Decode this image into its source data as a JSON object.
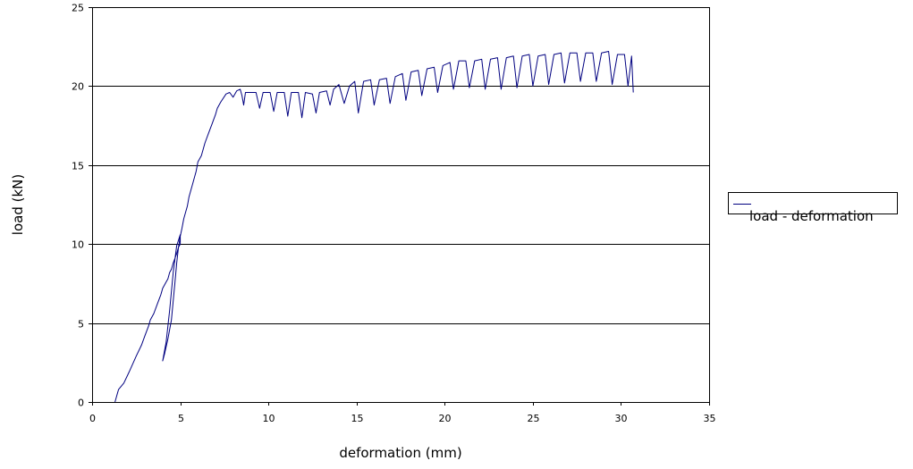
{
  "chart_data": {
    "type": "line",
    "title": "",
    "xlabel": "deformation (mm)",
    "ylabel": "load (kN)",
    "xlim": [
      0,
      35
    ],
    "ylim": [
      0,
      25
    ],
    "x_ticks": [
      0,
      5,
      10,
      15,
      20,
      25,
      30,
      35
    ],
    "y_ticks": [
      0,
      5,
      10,
      15,
      20,
      25
    ],
    "y_gridlines": true,
    "legend_position": "right",
    "colors": {
      "series": "#000080"
    },
    "series": [
      {
        "name": "load - deformation",
        "points": [
          [
            1.3,
            0.0
          ],
          [
            1.4,
            0.4
          ],
          [
            1.5,
            0.8
          ],
          [
            1.8,
            1.2
          ],
          [
            2.1,
            1.9
          ],
          [
            2.5,
            2.9
          ],
          [
            2.8,
            3.6
          ],
          [
            3.0,
            4.2
          ],
          [
            3.2,
            4.8
          ],
          [
            3.3,
            5.2
          ],
          [
            3.5,
            5.6
          ],
          [
            3.7,
            6.2
          ],
          [
            3.9,
            6.8
          ],
          [
            4.0,
            7.2
          ],
          [
            4.2,
            7.6
          ],
          [
            4.3,
            7.8
          ],
          [
            4.4,
            8.2
          ],
          [
            4.5,
            8.4
          ],
          [
            4.6,
            8.8
          ],
          [
            4.7,
            9.1
          ],
          [
            4.8,
            9.4
          ],
          [
            4.9,
            9.8
          ],
          [
            5.0,
            10.0
          ],
          [
            5.0,
            10.6
          ],
          [
            4.8,
            9.9
          ],
          [
            4.6,
            8.2
          ],
          [
            4.4,
            5.8
          ],
          [
            4.2,
            3.8
          ],
          [
            4.0,
            2.6
          ],
          [
            4.1,
            3.0
          ],
          [
            4.3,
            4.0
          ],
          [
            4.5,
            5.2
          ],
          [
            4.6,
            6.4
          ],
          [
            4.7,
            7.6
          ],
          [
            4.8,
            8.8
          ],
          [
            4.9,
            9.8
          ],
          [
            5.0,
            10.5
          ],
          [
            5.1,
            11.0
          ],
          [
            5.2,
            11.6
          ],
          [
            5.4,
            12.4
          ],
          [
            5.5,
            13.0
          ],
          [
            5.7,
            13.8
          ],
          [
            5.9,
            14.6
          ],
          [
            6.0,
            15.2
          ],
          [
            6.2,
            15.6
          ],
          [
            6.4,
            16.4
          ],
          [
            6.6,
            17.0
          ],
          [
            6.8,
            17.6
          ],
          [
            7.0,
            18.2
          ],
          [
            7.1,
            18.6
          ],
          [
            7.3,
            19.0
          ],
          [
            7.6,
            19.5
          ],
          [
            7.8,
            19.6
          ],
          [
            8.0,
            19.3
          ],
          [
            8.2,
            19.7
          ],
          [
            8.4,
            19.8
          ],
          [
            8.5,
            19.4
          ],
          [
            8.6,
            18.8
          ],
          [
            8.7,
            19.6
          ],
          [
            9.0,
            19.6
          ],
          [
            9.3,
            19.6
          ],
          [
            9.5,
            18.6
          ],
          [
            9.7,
            19.6
          ],
          [
            10.1,
            19.6
          ],
          [
            10.3,
            18.4
          ],
          [
            10.5,
            19.6
          ],
          [
            10.9,
            19.6
          ],
          [
            11.1,
            18.1
          ],
          [
            11.3,
            19.6
          ],
          [
            11.7,
            19.6
          ],
          [
            11.9,
            18.0
          ],
          [
            12.1,
            19.6
          ],
          [
            12.5,
            19.5
          ],
          [
            12.7,
            18.3
          ],
          [
            12.9,
            19.6
          ],
          [
            13.3,
            19.7
          ],
          [
            13.5,
            18.8
          ],
          [
            13.7,
            19.8
          ],
          [
            14.0,
            20.1
          ],
          [
            14.3,
            18.9
          ],
          [
            14.6,
            20.0
          ],
          [
            14.9,
            20.3
          ],
          [
            15.1,
            18.3
          ],
          [
            15.4,
            20.3
          ],
          [
            15.8,
            20.4
          ],
          [
            16.0,
            18.8
          ],
          [
            16.3,
            20.4
          ],
          [
            16.7,
            20.5
          ],
          [
            16.9,
            18.9
          ],
          [
            17.2,
            20.6
          ],
          [
            17.6,
            20.8
          ],
          [
            17.8,
            19.1
          ],
          [
            18.1,
            20.9
          ],
          [
            18.5,
            21.0
          ],
          [
            18.7,
            19.4
          ],
          [
            19.0,
            21.1
          ],
          [
            19.4,
            21.2
          ],
          [
            19.6,
            19.6
          ],
          [
            19.9,
            21.3
          ],
          [
            20.3,
            21.5
          ],
          [
            20.5,
            19.8
          ],
          [
            20.8,
            21.6
          ],
          [
            21.2,
            21.6
          ],
          [
            21.4,
            19.9
          ],
          [
            21.7,
            21.6
          ],
          [
            22.1,
            21.7
          ],
          [
            22.3,
            19.8
          ],
          [
            22.6,
            21.7
          ],
          [
            23.0,
            21.8
          ],
          [
            23.2,
            19.8
          ],
          [
            23.5,
            21.8
          ],
          [
            23.9,
            21.9
          ],
          [
            24.1,
            19.9
          ],
          [
            24.4,
            21.9
          ],
          [
            24.8,
            22.0
          ],
          [
            25.0,
            20.0
          ],
          [
            25.3,
            21.9
          ],
          [
            25.7,
            22.0
          ],
          [
            25.9,
            20.1
          ],
          [
            26.2,
            22.0
          ],
          [
            26.6,
            22.1
          ],
          [
            26.8,
            20.2
          ],
          [
            27.1,
            22.1
          ],
          [
            27.5,
            22.1
          ],
          [
            27.7,
            20.3
          ],
          [
            28.0,
            22.1
          ],
          [
            28.4,
            22.1
          ],
          [
            28.6,
            20.3
          ],
          [
            28.9,
            22.1
          ],
          [
            29.3,
            22.2
          ],
          [
            29.5,
            20.1
          ],
          [
            29.8,
            22.0
          ],
          [
            30.2,
            22.0
          ],
          [
            30.4,
            20.0
          ],
          [
            30.6,
            21.9
          ],
          [
            30.7,
            19.6
          ]
        ]
      }
    ]
  }
}
